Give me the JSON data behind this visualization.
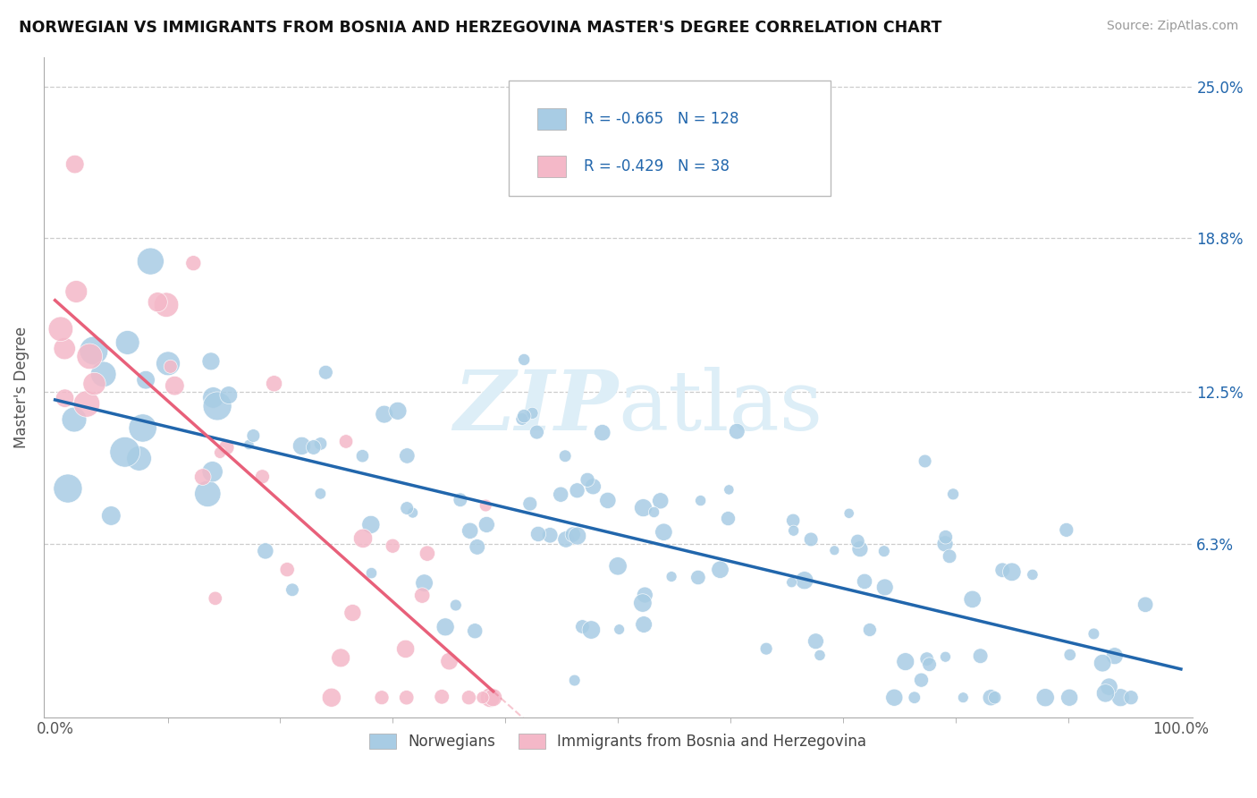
{
  "title": "NORWEGIAN VS IMMIGRANTS FROM BOSNIA AND HERZEGOVINA MASTER'S DEGREE CORRELATION CHART",
  "source": "Source: ZipAtlas.com",
  "ylabel": "Master's Degree",
  "xlabel": "",
  "xlim": [
    0.0,
    1.0
  ],
  "ylim": [
    0.0,
    0.25
  ],
  "ytick_vals": [
    0.0,
    0.063,
    0.125,
    0.188,
    0.25
  ],
  "right_ytick_labels": [
    "",
    "6.3%",
    "12.5%",
    "18.8%",
    "25.0%"
  ],
  "xtick_labels": [
    "0.0%",
    "100.0%"
  ],
  "legend_r1": "-0.665",
  "legend_n1": "128",
  "legend_r2": "-0.429",
  "legend_n2": "38",
  "blue_color": "#a8cce4",
  "pink_color": "#f4b8c8",
  "blue_line_color": "#2166ac",
  "pink_line_color": "#e8607a",
  "text_blue": "#2166ac",
  "text_dark": "#333333",
  "background_color": "#ffffff",
  "grid_color": "#cccccc",
  "title_color": "#111111",
  "legend_label1": "Norwegians",
  "legend_label2": "Immigrants from Bosnia and Herzegovina",
  "watermark_color": "#ddeef7"
}
